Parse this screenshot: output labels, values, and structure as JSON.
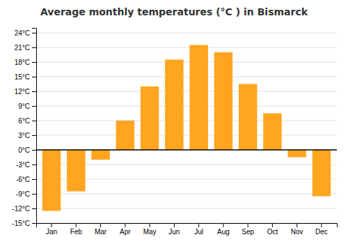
{
  "chart_data": {
    "type": "bar",
    "title": "Average monthly temperatures (°C ) in Bismarck",
    "categories": [
      "Jan",
      "Feb",
      "Mar",
      "Apr",
      "May",
      "Jun",
      "Jul",
      "Aug",
      "Sep",
      "Oct",
      "Nov",
      "Dec"
    ],
    "values": [
      -12.5,
      -8.5,
      -2.0,
      6.0,
      13.0,
      18.5,
      21.5,
      20.0,
      13.5,
      7.5,
      -1.5,
      -9.5
    ],
    "color": "#FFA520",
    "ylim": [
      -15,
      25
    ],
    "yticks": [
      {
        "value": -15,
        "label": "-15°C"
      },
      {
        "value": -12,
        "label": "-12°C"
      },
      {
        "value": -9,
        "label": "-9°C"
      },
      {
        "value": -6,
        "label": "-6°C"
      },
      {
        "value": -3,
        "label": "-3°C"
      },
      {
        "value": 0,
        "label": "0°C"
      },
      {
        "value": 3,
        "label": "3°C"
      },
      {
        "value": 6,
        "label": "6°C"
      },
      {
        "value": 9,
        "label": "9°C"
      },
      {
        "value": 12,
        "label": "12°C"
      },
      {
        "value": 15,
        "label": "15°C"
      },
      {
        "value": 18,
        "label": "18°C"
      },
      {
        "value": 21,
        "label": "21°C"
      },
      {
        "value": 24,
        "label": "24°C"
      }
    ],
    "grid": true
  }
}
